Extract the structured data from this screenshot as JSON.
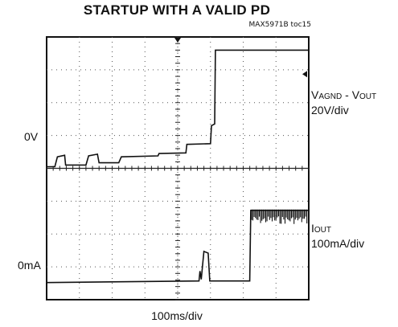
{
  "title": "STARTUP WITH A VALID PD",
  "figure_code": "MAX5971B toc15",
  "xlabel": "100ms/div",
  "channels": {
    "top": {
      "zero_label": "0V",
      "name_main": "V",
      "name_sub_1": "AGND",
      "name_mid": " - V",
      "name_sub_2": "OUT",
      "scale": "20V/div"
    },
    "bottom": {
      "zero_label": "0mA",
      "name_main": "I",
      "name_sub_1": "OUT",
      "scale": "100mA/div"
    }
  },
  "chart_data": {
    "type": "line",
    "title": "STARTUP WITH A VALID PD",
    "xlabel": "100ms/div",
    "grid": {
      "h_divisions": 8,
      "v_divisions": 8,
      "on": true
    },
    "series": [
      {
        "name": "VAGND - VOUT",
        "units": "div",
        "points": [
          [
            0.0,
            0.0
          ],
          [
            0.25,
            0.0
          ],
          [
            0.33,
            0.3
          ],
          [
            0.55,
            0.35
          ],
          [
            0.58,
            0.05
          ],
          [
            1.2,
            0.05
          ],
          [
            1.28,
            0.33
          ],
          [
            1.55,
            0.38
          ],
          [
            1.6,
            0.12
          ],
          [
            2.2,
            0.12
          ],
          [
            2.28,
            0.3
          ],
          [
            3.4,
            0.33
          ],
          [
            3.43,
            0.4
          ],
          [
            4.25,
            0.42
          ],
          [
            4.28,
            0.68
          ],
          [
            5.0,
            0.7
          ],
          [
            5.03,
            1.25
          ],
          [
            5.13,
            1.3
          ],
          [
            5.15,
            3.55
          ],
          [
            8.0,
            3.55
          ]
        ]
      },
      {
        "name": "IOUT",
        "units": "div",
        "points": [
          [
            0.0,
            0.0
          ],
          [
            4.65,
            0.05
          ],
          [
            4.68,
            0.35
          ],
          [
            4.72,
            0.1
          ],
          [
            4.8,
            0.95
          ],
          [
            4.93,
            0.9
          ],
          [
            4.98,
            0.05
          ],
          [
            6.2,
            0.05
          ],
          [
            6.23,
            2.2
          ],
          [
            8.0,
            2.2
          ]
        ],
        "noisy_segment_from_div": 6.23
      }
    ]
  }
}
